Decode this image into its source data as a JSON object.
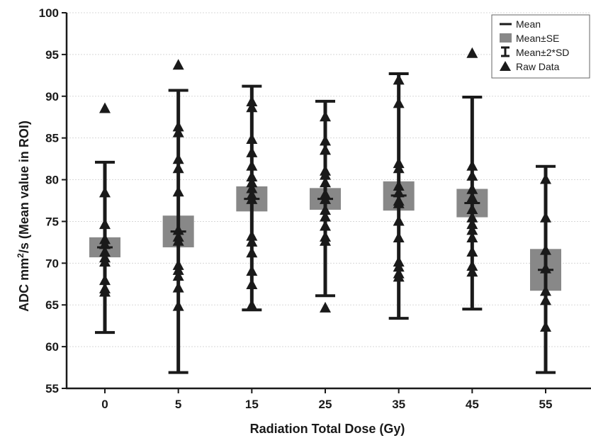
{
  "chart_data": {
    "type": "box-whisker",
    "xlabel": "Radiation Total Dose (Gy)",
    "ylabel_prefix": "ADC mm",
    "ylabel_sup": "2",
    "ylabel_suffix": "/s (Mean value in ROI)",
    "ylim": [
      55,
      100
    ],
    "yticks": [
      "55",
      "60",
      "65",
      "70",
      "75",
      "80",
      "85",
      "90",
      "95",
      "100"
    ],
    "grid": true,
    "legend_placement": "top-right",
    "legend": {
      "mean": "Mean",
      "se": "Mean±SE",
      "sd": "Mean±2*SD",
      "raw": "Raw Data"
    },
    "colors": {
      "box": "#888888",
      "marks": "#1a1a1a",
      "grid": "#d8d8d8"
    },
    "groups": [
      {
        "label": "0",
        "mean": 71.9,
        "se": [
          70.7,
          73.1
        ],
        "sd2": [
          61.7,
          82.1
        ],
        "raw": [
          88.5,
          78.4,
          74.6,
          72.8,
          72.2,
          71.3,
          70.6,
          70.1,
          67.9,
          66.9,
          66.5
        ]
      },
      {
        "label": "5",
        "mean": 73.8,
        "se": [
          71.9,
          75.7
        ],
        "sd2": [
          56.9,
          90.7
        ],
        "raw": [
          93.7,
          86.3,
          85.6,
          82.4,
          81.3,
          78.5,
          73.9,
          73.1,
          72.6,
          69.7,
          69.1,
          68.4,
          67.0,
          64.8
        ]
      },
      {
        "label": "15",
        "mean": 77.7,
        "se": [
          76.2,
          79.2
        ],
        "sd2": [
          64.4,
          91.2
        ],
        "raw": [
          89.3,
          88.6,
          84.8,
          83.2,
          81.6,
          80.3,
          79.6,
          78.9,
          78.1,
          77.6,
          73.2,
          72.5,
          71.2,
          69.0,
          67.4,
          64.9
        ]
      },
      {
        "label": "25",
        "mean": 77.7,
        "se": [
          76.4,
          79.0
        ],
        "sd2": [
          66.1,
          89.4
        ],
        "raw": [
          87.5,
          84.6,
          83.5,
          81.0,
          80.5,
          79.6,
          78.2,
          77.6,
          76.3,
          75.5,
          74.4,
          73.1,
          72.6,
          64.6
        ]
      },
      {
        "label": "35",
        "mean": 78.1,
        "se": [
          76.3,
          79.8
        ],
        "sd2": [
          63.4,
          92.7
        ],
        "raw": [
          91.9,
          89.1,
          81.9,
          81.3,
          79.2,
          78.4,
          77.4,
          77.1,
          75.0,
          73.0,
          70.1,
          69.5,
          68.7,
          68.3
        ]
      },
      {
        "label": "45",
        "mean": 77.2,
        "se": [
          75.5,
          78.9
        ],
        "sd2": [
          64.5,
          89.9
        ],
        "raw": [
          95.1,
          81.6,
          80.4,
          78.8,
          77.8,
          76.4,
          75.4,
          74.6,
          73.9,
          73.0,
          71.3,
          69.6,
          68.9
        ]
      },
      {
        "label": "55",
        "mean": 69.2,
        "se": [
          66.7,
          71.7
        ],
        "sd2": [
          56.9,
          81.6
        ],
        "raw": [
          80.0,
          75.4,
          71.5,
          69.3,
          66.6,
          65.5,
          62.3
        ]
      }
    ]
  }
}
